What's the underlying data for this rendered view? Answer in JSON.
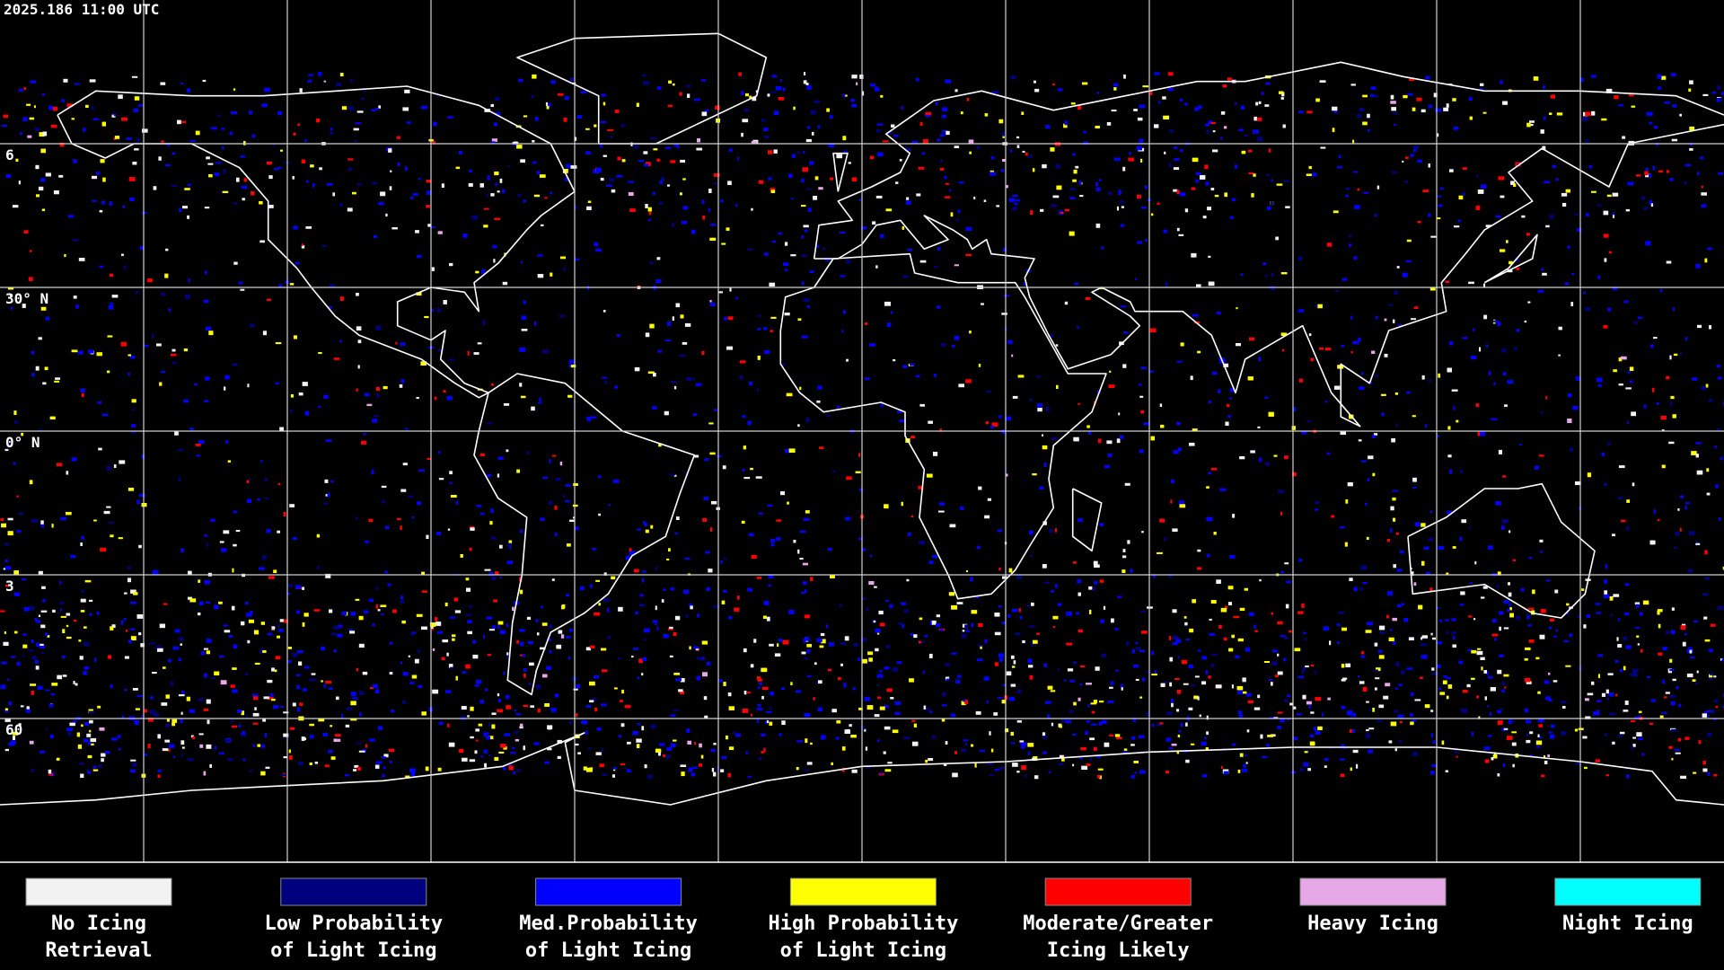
{
  "header": {
    "timestamp": "2025.186 11:00 UTC"
  },
  "map": {
    "lat_labels": [
      "6",
      "30° N",
      "0° N",
      "3",
      "60"
    ]
  },
  "legend": [
    {
      "label": [
        "No Icing",
        "Retrieval"
      ],
      "color": "#f2f2f2"
    },
    {
      "label": [
        "Low Probability",
        "of Light Icing"
      ],
      "color": "#00007f"
    },
    {
      "label": [
        "Med.Probability",
        "of Light Icing"
      ],
      "color": "#0000ff"
    },
    {
      "label": [
        "High Probability",
        "of Light Icing"
      ],
      "color": "#ffff00"
    },
    {
      "label": [
        "Moderate/Greater",
        "Icing Likely"
      ],
      "color": "#ff0000"
    },
    {
      "label": [
        "Heavy Icing"
      ],
      "color": "#e6a8e6"
    },
    {
      "label": [
        "Night Icing"
      ],
      "color": "#00ffff"
    }
  ]
}
